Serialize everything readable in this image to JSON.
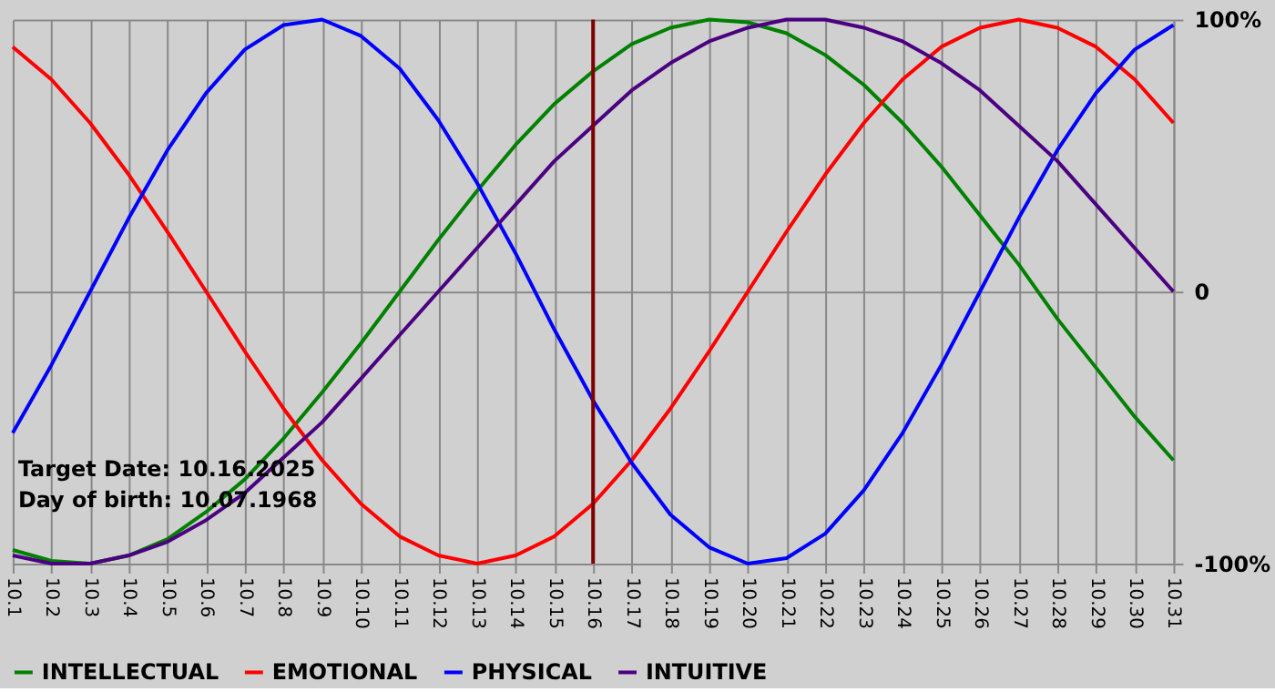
{
  "chart_data": {
    "type": "line",
    "categories": [
      "10.1",
      "10.2",
      "10.3",
      "10.4",
      "10.5",
      "10.6",
      "10.7",
      "10.8",
      "10.9",
      "10.10",
      "10.11",
      "10.12",
      "10.13",
      "10.14",
      "10.15",
      "10.16",
      "10.17",
      "10.18",
      "10.19",
      "10.20",
      "10.21",
      "10.22",
      "10.23",
      "10.24",
      "10.25",
      "10.26",
      "10.27",
      "10.28",
      "10.29",
      "10.30",
      "10.31"
    ],
    "series": [
      {
        "name": "INTELLECTUAL",
        "color": "#008000",
        "values": [
          -95,
          -99,
          -100,
          -97,
          -91,
          -81,
          -69,
          -54,
          -37,
          -19,
          0,
          19,
          37,
          54,
          69,
          81,
          91,
          97,
          100,
          99,
          95,
          87,
          76,
          62,
          46,
          28,
          10,
          -10,
          -28,
          -46,
          -62
        ]
      },
      {
        "name": "EMOTIONAL",
        "color": "#ff0000",
        "values": [
          90,
          78,
          62,
          43,
          22,
          0,
          -22,
          -43,
          -62,
          -78,
          -90,
          -97,
          -100,
          -97,
          -90,
          -78,
          -62,
          -43,
          -22,
          0,
          22,
          43,
          62,
          78,
          90,
          97,
          100,
          97,
          90,
          78,
          62
        ]
      },
      {
        "name": "PHYSICAL",
        "color": "#0000ff",
        "values": [
          -52,
          -27,
          0,
          27,
          52,
          73,
          89,
          98,
          100,
          94,
          82,
          63,
          40,
          14,
          -14,
          -40,
          -63,
          -82,
          -94,
          -100,
          -98,
          -89,
          -73,
          -52,
          -27,
          0,
          27,
          52,
          73,
          89,
          98
        ]
      },
      {
        "name": "INTUITIVE",
        "color": "#4b0082",
        "values": [
          -97,
          -100,
          -100,
          -97,
          -92,
          -84,
          -74,
          -61,
          -48,
          -32,
          -16,
          0,
          16,
          32,
          48,
          61,
          74,
          84,
          92,
          97,
          100,
          100,
          97,
          92,
          84,
          74,
          61,
          48,
          32,
          16,
          0
        ]
      }
    ],
    "ylim": [
      -100,
      100
    ],
    "yticks": [
      {
        "value": 100,
        "label": "100%"
      },
      0,
      {
        "value": -100,
        "label": "-100%"
      }
    ],
    "ref_lines": [
      {
        "axis": "x",
        "value": "10.16",
        "color": "#800000"
      }
    ],
    "annotations": [
      "Target Date: 10.16.2025",
      "Day of birth: 10.07.1968"
    ],
    "grid": true,
    "legend": "bottom left",
    "line_style": "solid",
    "marker": "none"
  }
}
